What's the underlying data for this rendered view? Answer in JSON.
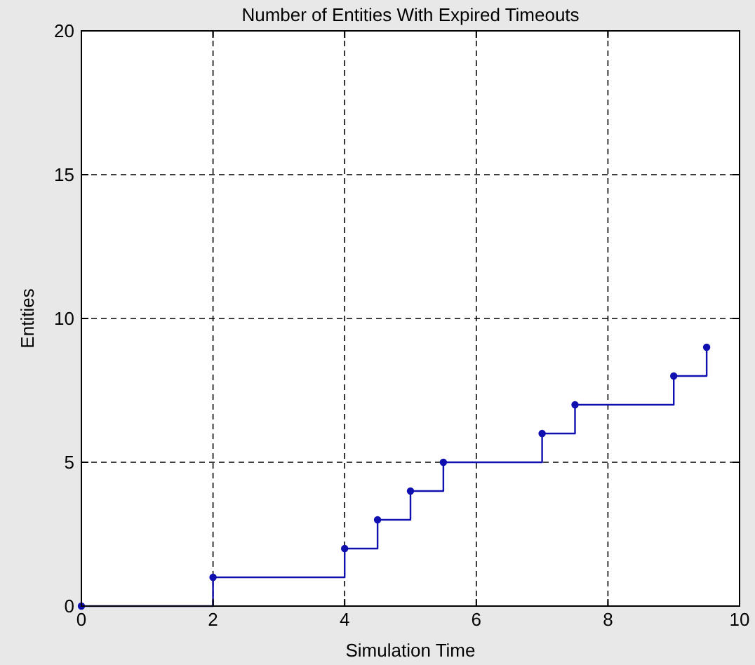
{
  "chart_data": {
    "type": "step",
    "title": "Number of Entities With Expired Timeouts",
    "xlabel": "Simulation Time",
    "ylabel": "Entities",
    "series": [
      {
        "color": "#1010b0",
        "x": [
          0,
          2,
          4,
          4.5,
          5,
          5.5,
          7,
          7.5,
          9,
          9.5
        ],
        "values": [
          0,
          1,
          2,
          3,
          4,
          5,
          6,
          7,
          8,
          9
        ]
      }
    ],
    "xlim": [
      0,
      10
    ],
    "xticks": [
      0,
      2,
      4,
      6,
      8,
      10
    ],
    "ylim": [
      0,
      20
    ],
    "yticks": [
      0,
      5,
      10,
      15,
      20
    ],
    "grid": true,
    "marker": "circle",
    "line_style": "solid"
  }
}
